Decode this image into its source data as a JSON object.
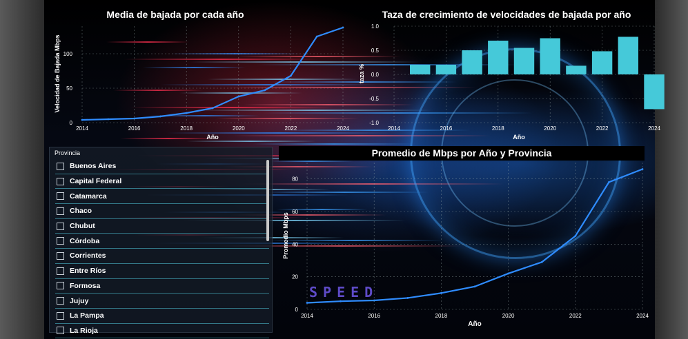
{
  "charts": {
    "avg_download": {
      "title": "Media de bajada por cada año",
      "xlabel": "Año",
      "ylabel": "Velocidad de Bajada Mbps",
      "x_ticks": [
        "2014",
        "2016",
        "2018",
        "2020",
        "2022",
        "2024"
      ],
      "y_ticks": [
        "0",
        "50",
        "100"
      ],
      "line_color": "#2f8cff"
    },
    "growth": {
      "title": "Taza de crecimiento de velocidades de bajada por año",
      "xlabel": "Año",
      "ylabel": "taza %",
      "x_ticks": [
        "2014",
        "2016",
        "2018",
        "2020",
        "2022",
        "2024"
      ],
      "y_ticks": [
        "1.0",
        "0.5",
        "0.0",
        "-0.5",
        "-1.0"
      ],
      "bar_color": "#45c9d9"
    },
    "province_avg": {
      "title": "Promedio de Mbps por Año y Provincia",
      "xlabel": "Año",
      "ylabel": "Promedio Mbps",
      "x_ticks": [
        "2014",
        "2016",
        "2018",
        "2020",
        "2022",
        "2024"
      ],
      "y_ticks": [
        "0",
        "20",
        "40",
        "60",
        "80"
      ],
      "line_color": "#2f8cff"
    }
  },
  "chart_data": [
    {
      "type": "line",
      "title": "Media de bajada por cada año",
      "xlabel": "Año",
      "ylabel": "Velocidad de Bajada Mbps",
      "x": [
        2014,
        2015,
        2016,
        2017,
        2018,
        2019,
        2020,
        2021,
        2022,
        2023,
        2024
      ],
      "series": [
        {
          "values": [
            4,
            5,
            6,
            9,
            14,
            21,
            38,
            47,
            68,
            125,
            138
          ]
        }
      ],
      "xlim": [
        2014,
        2024
      ],
      "ylim": [
        0,
        140
      ],
      "grid": true
    },
    {
      "type": "bar",
      "title": "Taza de crecimiento de velocidades de bajada por año",
      "xlabel": "Año",
      "ylabel": "taza %",
      "x": [
        2015,
        2016,
        2017,
        2018,
        2019,
        2020,
        2021,
        2022,
        2023,
        2024
      ],
      "values": [
        0.2,
        0.2,
        0.5,
        0.7,
        0.55,
        0.75,
        0.18,
        0.48,
        0.78,
        -0.72
      ],
      "ylim": [
        -1.0,
        1.0
      ],
      "grid": true
    },
    {
      "type": "line",
      "title": "Promedio de Mbps por Año y Provincia",
      "xlabel": "Año",
      "ylabel": "Promedio Mbps",
      "x": [
        2014,
        2015,
        2016,
        2017,
        2018,
        2019,
        2020,
        2021,
        2022,
        2023,
        2024
      ],
      "series": [
        {
          "values": [
            4,
            5,
            5.5,
            7,
            10,
            14,
            22,
            29,
            45,
            78,
            86
          ]
        }
      ],
      "xlim": [
        2014,
        2024
      ],
      "ylim": [
        0,
        90
      ],
      "grid": true
    }
  ],
  "slicer": {
    "header": "Provincia",
    "items": [
      "Buenos Aires",
      "Capital Federal",
      "Catamarca",
      "Chaco",
      "Chubut",
      "Córdoba",
      "Corrientes",
      "Entre Ríos",
      "Formosa",
      "Jujuy",
      "La Pampa",
      "La Rioja"
    ]
  },
  "background": {
    "text": "SPEED"
  }
}
